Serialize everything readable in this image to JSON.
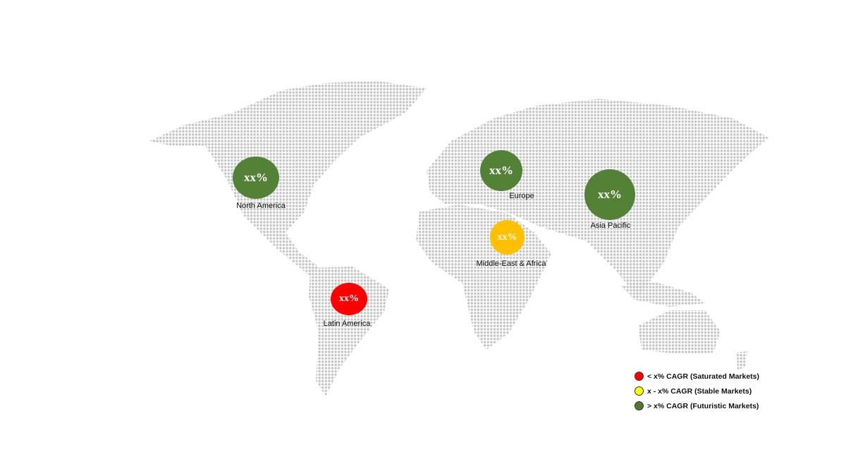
{
  "regions": [
    {
      "name": "North America",
      "value": "xx%",
      "color": "#538135"
    },
    {
      "name": "Europe",
      "value": "xx%",
      "color": "#538135"
    },
    {
      "name": "Asia Pacific",
      "value": "xx%",
      "color": "#538135"
    },
    {
      "name": "Middle-East & Africa",
      "value": "xx%",
      "color": "#ffc000"
    },
    {
      "name": "Latin America",
      "value": "xx%",
      "color": "#ff0000"
    }
  ],
  "legend": [
    {
      "label": "< x% CAGR (Saturated Markets)",
      "color": "#ff0000"
    },
    {
      "label": "x - x% CAGR (Stable Markets)",
      "color": "#ffff00"
    },
    {
      "label": "> x% CAGR (Futuristic Markets)",
      "color": "#4f7a2e"
    }
  ],
  "map_style": {
    "dot_color": "#c4c4c4"
  }
}
